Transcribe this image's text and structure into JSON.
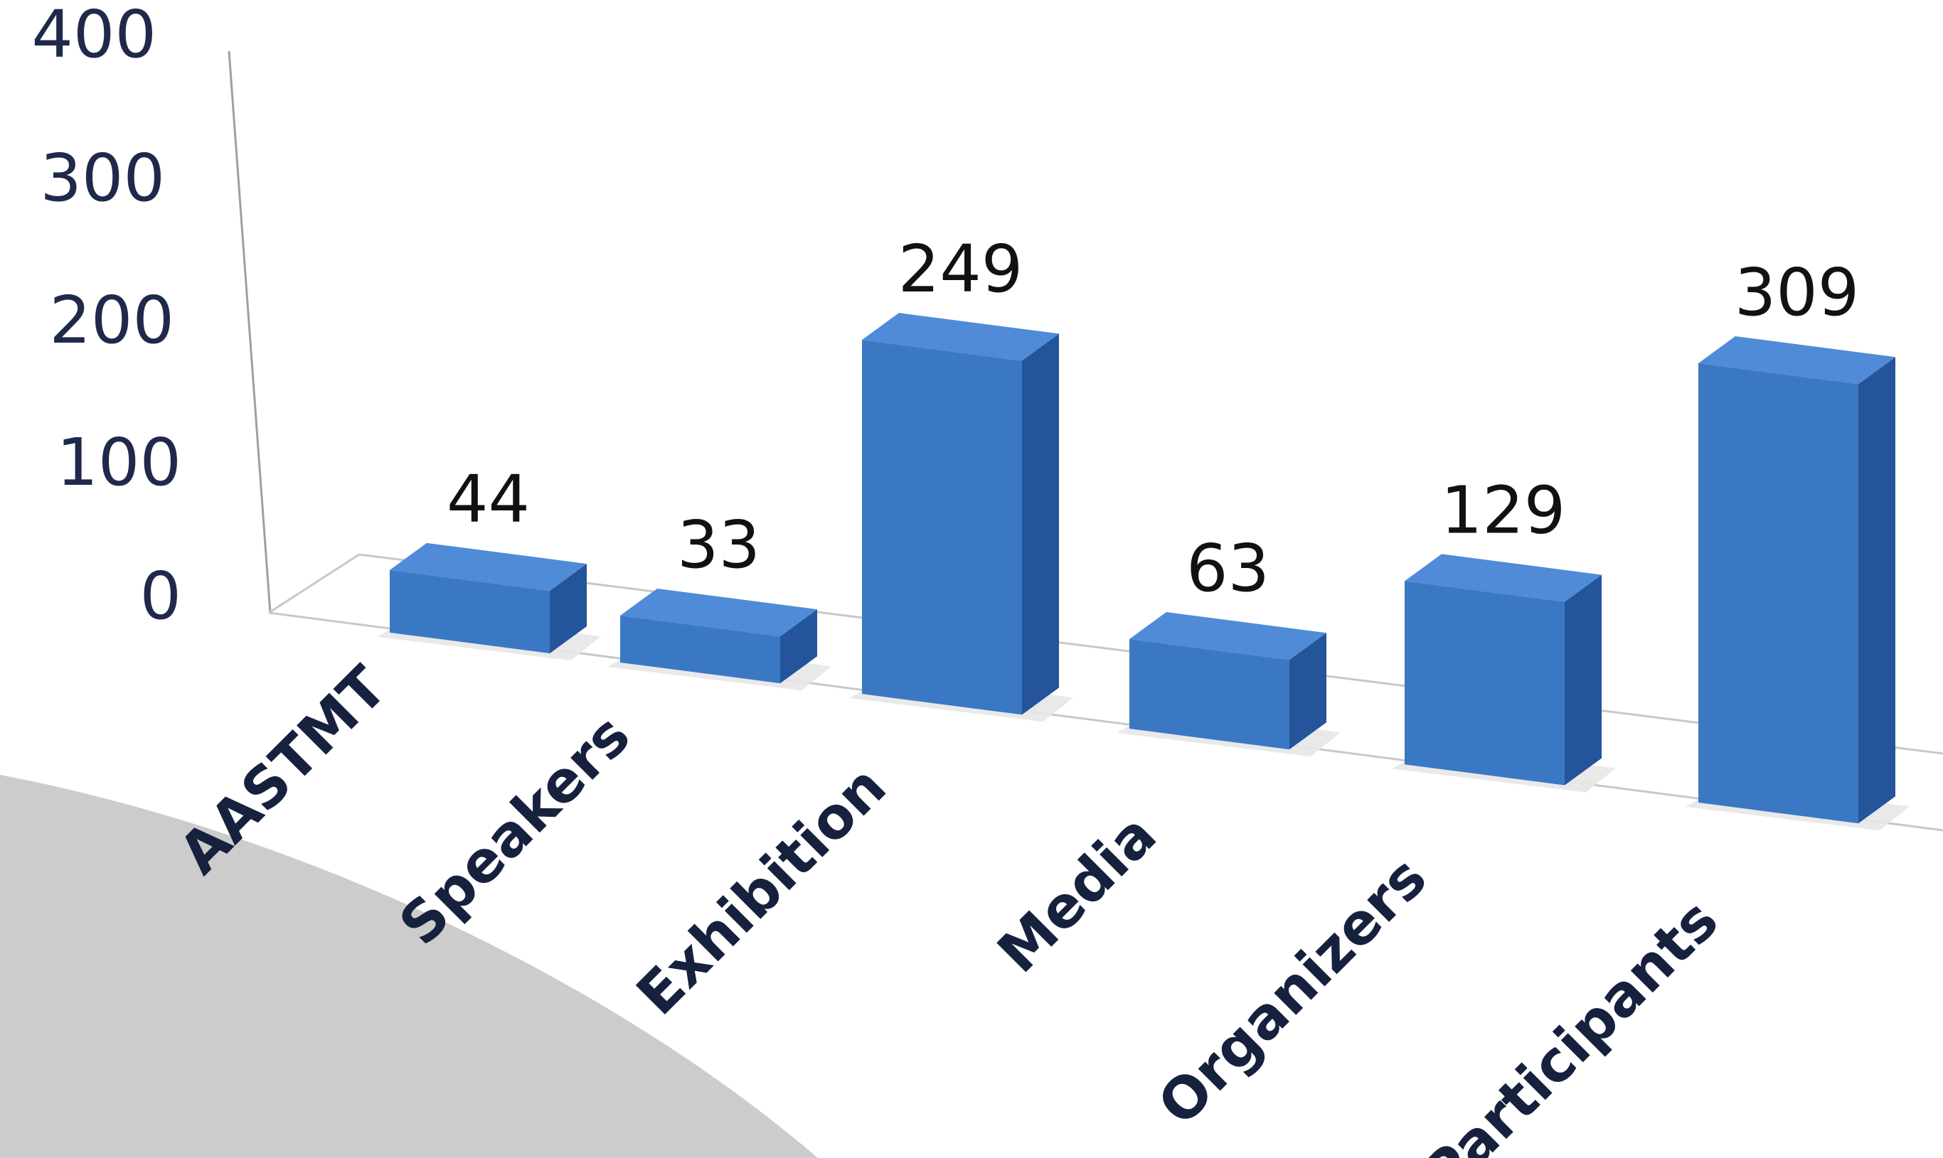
{
  "chart_data": {
    "type": "bar",
    "categories": [
      "AASTMT",
      "Speakers",
      "Exhibition",
      "Media",
      "Organizers",
      "Participants"
    ],
    "values": [
      44,
      33,
      249,
      63,
      129,
      309
    ],
    "title": "",
    "xlabel": "",
    "ylabel": "",
    "ylim": [
      0,
      400
    ],
    "yticks": [
      0,
      100,
      200,
      300,
      400
    ],
    "grid": false,
    "legend": "none",
    "colors": {
      "bar_front": "#3b78c4",
      "bar_top": "#4f8bd6",
      "bar_side": "#24549a",
      "axis": "#9aa39a",
      "tick_text": "#1f2a4a",
      "label_text": "#16213e",
      "background_shape": "#cccccc"
    }
  }
}
